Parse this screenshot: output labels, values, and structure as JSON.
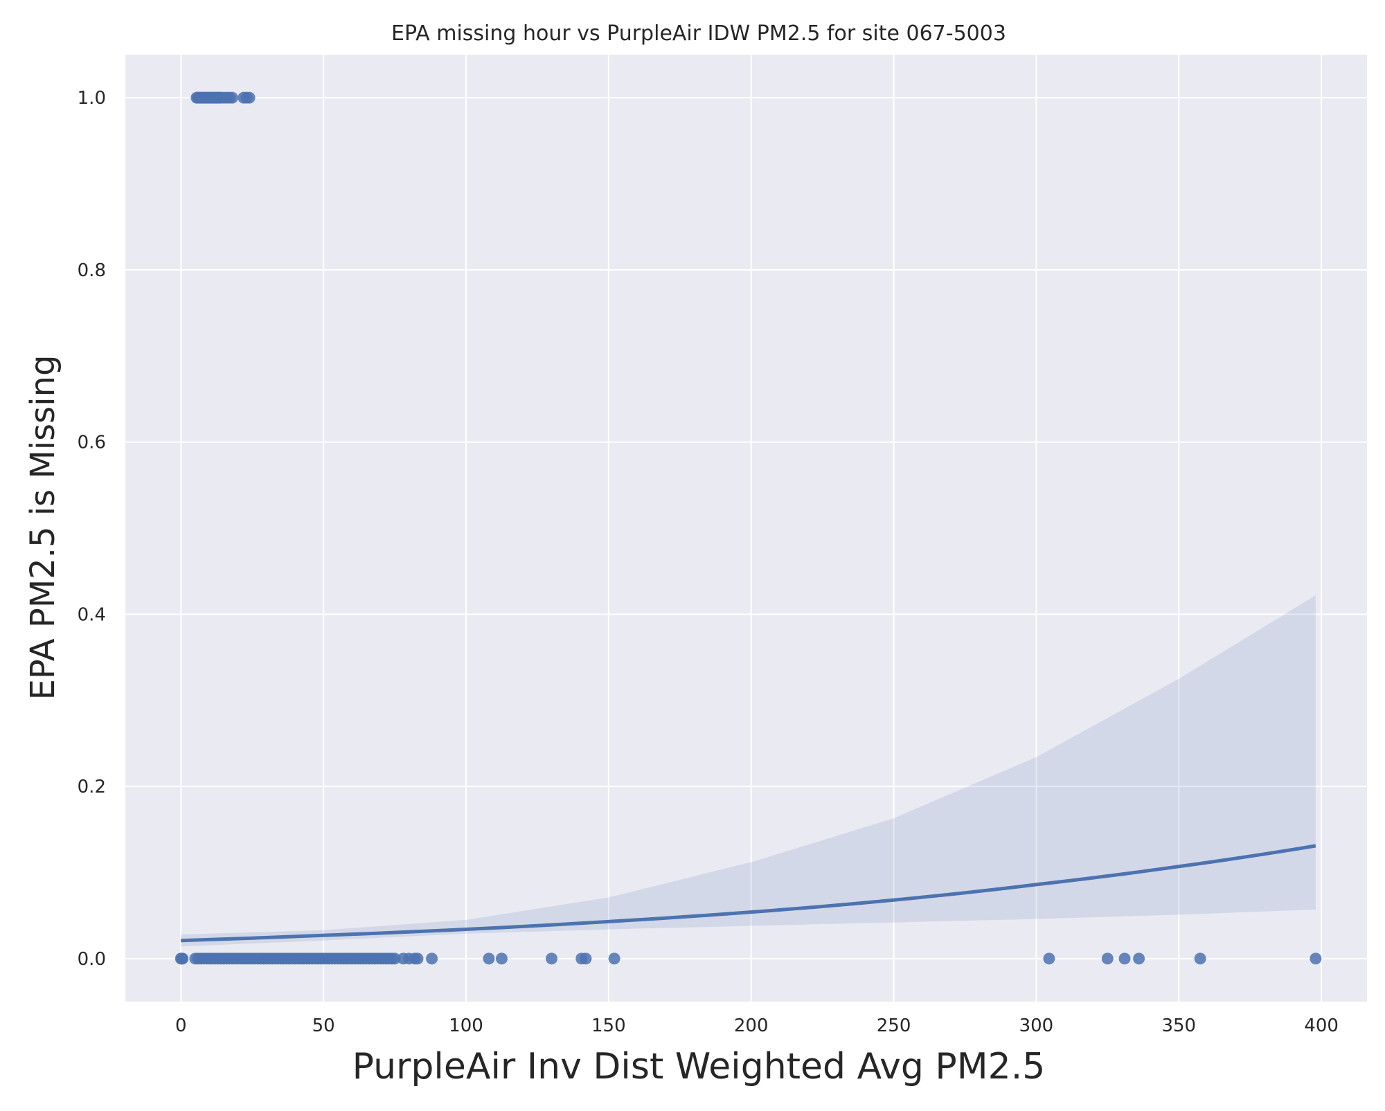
{
  "chart_data": {
    "type": "scatter",
    "title": "EPA missing hour vs PurpleAir IDW PM2.5 for site 067-5003",
    "xlabel": "PurpleAir Inv Dist Weighted Avg PM2.5",
    "ylabel": "EPA PM2.5 is Missing",
    "xlim": [
      -19.5,
      416
    ],
    "ylim": [
      -0.05,
      1.05
    ],
    "xticks": [
      0,
      50,
      100,
      150,
      200,
      250,
      300,
      350,
      400
    ],
    "yticks": [
      0.0,
      0.2,
      0.4,
      0.6,
      0.8,
      1.0
    ],
    "xtick_labels": [
      "0",
      "50",
      "100",
      "150",
      "200",
      "250",
      "300",
      "350",
      "400"
    ],
    "ytick_labels": [
      "0.0",
      "0.2",
      "0.4",
      "0.6",
      "0.8",
      "1.0"
    ],
    "grid": true,
    "colors": {
      "background": "#eaeaf2",
      "grid": "#ffffff",
      "points": "#4c72b0",
      "line": "#4c72b0",
      "band": "#4c72b0"
    },
    "series": [
      {
        "kind": "points",
        "x": [
          0,
          0.3,
          0.6,
          5,
          6,
          7,
          8,
          9,
          10,
          11,
          12,
          13,
          14,
          15,
          16,
          17,
          18,
          19,
          20,
          21,
          22,
          23,
          24,
          25,
          26,
          27,
          28,
          29,
          30,
          31,
          32,
          33,
          34,
          35,
          36,
          37,
          38,
          39,
          40,
          41,
          42,
          43,
          44,
          45,
          46,
          47,
          48,
          49,
          50,
          51,
          52,
          53,
          54,
          55,
          56,
          57,
          58,
          59,
          60,
          61,
          62,
          63,
          64,
          65,
          66,
          67,
          68,
          69,
          70,
          71,
          72,
          73,
          74,
          75,
          78,
          80,
          82,
          83,
          88,
          108,
          112.5,
          130,
          140.5,
          142,
          152,
          304.5,
          325,
          331,
          336,
          357.5,
          398
        ],
        "y": [
          0,
          0,
          0,
          0,
          0,
          0,
          0,
          0,
          0,
          0,
          0,
          0,
          0,
          0,
          0,
          0,
          0,
          0,
          0,
          0,
          0,
          0,
          0,
          0,
          0,
          0,
          0,
          0,
          0,
          0,
          0,
          0,
          0,
          0,
          0,
          0,
          0,
          0,
          0,
          0,
          0,
          0,
          0,
          0,
          0,
          0,
          0,
          0,
          0,
          0,
          0,
          0,
          0,
          0,
          0,
          0,
          0,
          0,
          0,
          0,
          0,
          0,
          0,
          0,
          0,
          0,
          0,
          0,
          0,
          0,
          0,
          0,
          0,
          0,
          0,
          0,
          0,
          0,
          0,
          0,
          0,
          0,
          0,
          0,
          0,
          0,
          0,
          0,
          0,
          0,
          0
        ]
      },
      {
        "kind": "points",
        "x": [
          5.5,
          6,
          6.5,
          7,
          7.5,
          8,
          8.5,
          9,
          9.5,
          10,
          10.5,
          11,
          11.5,
          12,
          12.5,
          13,
          13.5,
          14,
          15,
          16,
          17,
          18,
          22,
          23,
          24
        ],
        "y": [
          1,
          1,
          1,
          1,
          1,
          1,
          1,
          1,
          1,
          1,
          1,
          1,
          1,
          1,
          1,
          1,
          1,
          1,
          1,
          1,
          1,
          1,
          1,
          1,
          1
        ]
      },
      {
        "kind": "logistic_fit",
        "x": [
          0,
          50,
          100,
          150,
          200,
          250,
          300,
          350,
          398
        ],
        "y": [
          0.021,
          0.027,
          0.034,
          0.043,
          0.054,
          0.068,
          0.086,
          0.107,
          0.131
        ]
      },
      {
        "kind": "confidence_band",
        "x": [
          0,
          50,
          100,
          150,
          200,
          250,
          300,
          350,
          398
        ],
        "lower": [
          0.014,
          0.021,
          0.029,
          0.034,
          0.038,
          0.042,
          0.046,
          0.051,
          0.057
        ],
        "upper": [
          0.028,
          0.033,
          0.045,
          0.071,
          0.112,
          0.163,
          0.234,
          0.325,
          0.422
        ]
      }
    ]
  }
}
